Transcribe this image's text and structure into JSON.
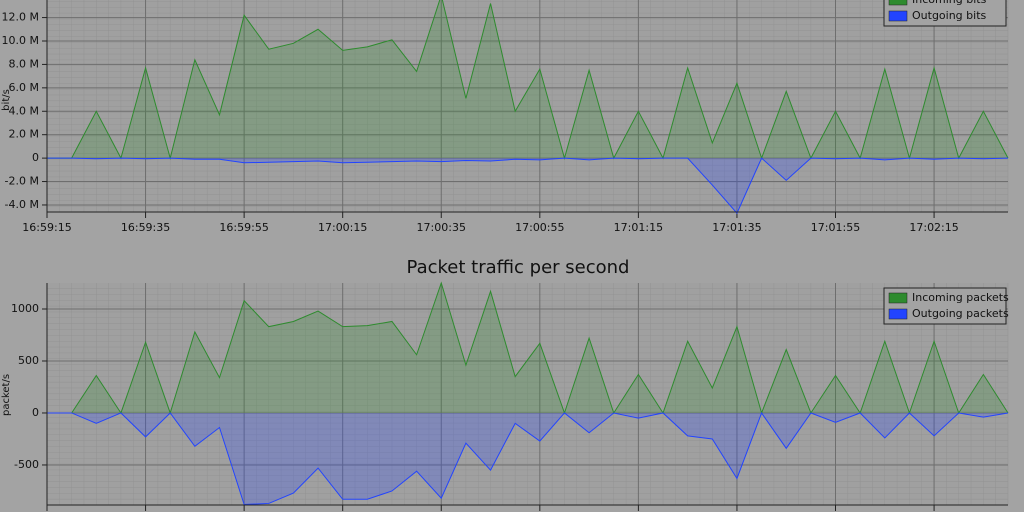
{
  "chart_data": [
    {
      "type": "area",
      "ylabel": "bit/s",
      "x": [
        "16:59:15",
        "16:59:20",
        "16:59:25",
        "16:59:30",
        "16:59:35",
        "16:59:40",
        "16:59:45",
        "16:59:50",
        "16:59:55",
        "17:00:00",
        "17:00:05",
        "17:00:10",
        "17:00:15",
        "17:00:20",
        "17:00:25",
        "17:00:30",
        "17:00:35",
        "17:00:40",
        "17:00:45",
        "17:00:50",
        "17:00:55",
        "17:01:00",
        "17:01:05",
        "17:01:10",
        "17:01:15",
        "17:01:20",
        "17:01:25",
        "17:01:30",
        "17:01:35",
        "17:01:40",
        "17:01:45",
        "17:01:50",
        "17:01:55",
        "17:02:00",
        "17:02:05",
        "17:02:10",
        "17:02:15",
        "17:02:20",
        "17:02:25",
        "17:02:30"
      ],
      "xlim": [
        "16:59:15",
        "17:02:30"
      ],
      "xticks": [
        "16:59:15",
        "16:59:35",
        "16:59:55",
        "17:00:15",
        "17:00:35",
        "17:00:55",
        "17:01:15",
        "17:01:35",
        "17:01:55",
        "17:02:15"
      ],
      "ylim": [
        -4600000,
        13500000
      ],
      "yticks": [
        {
          "value": -4000000,
          "label": "-4.0 M"
        },
        {
          "value": -2000000,
          "label": "-2.0 M"
        },
        0,
        {
          "value": 2000000,
          "label": "2.0 M"
        },
        {
          "value": 4000000,
          "label": "4.0 M"
        },
        {
          "value": 6000000,
          "label": "6.0 M"
        },
        {
          "value": 8000000,
          "label": "8.0 M"
        },
        {
          "value": 10000000,
          "label": "10.0 M"
        },
        {
          "value": 12000000,
          "label": "12.0 M"
        }
      ],
      "grid": true,
      "legend": "upper right",
      "series": [
        {
          "name": "Incoming bits",
          "color": "#2e8b2e",
          "values": [
            0,
            0,
            4000000,
            0,
            7700000,
            0,
            8400000,
            3700000,
            12200000,
            9300000,
            9800000,
            11000000,
            9200000,
            9500000,
            10100000,
            7400000,
            13900000,
            5100000,
            13200000,
            4000000,
            7600000,
            0,
            7500000,
            0,
            4000000,
            0,
            7700000,
            1300000,
            6400000,
            0,
            5700000,
            0,
            4000000,
            0,
            7600000,
            0,
            7700000,
            0,
            4000000,
            0
          ]
        },
        {
          "name": "Outgoing bits",
          "color": "#2244ff",
          "values": [
            0,
            0,
            -50000,
            0,
            -50000,
            0,
            -100000,
            -100000,
            -400000,
            -350000,
            -300000,
            -250000,
            -400000,
            -350000,
            -300000,
            -250000,
            -300000,
            -200000,
            -250000,
            -100000,
            -150000,
            0,
            -150000,
            0,
            -50000,
            0,
            0,
            -2300000,
            -4700000,
            0,
            -1900000,
            0,
            -50000,
            0,
            -150000,
            0,
            -100000,
            0,
            -50000,
            0
          ]
        }
      ]
    },
    {
      "type": "area",
      "title": "Packet traffic per second",
      "ylabel": "packet/s",
      "x": [
        "16:59:15",
        "16:59:20",
        "16:59:25",
        "16:59:30",
        "16:59:35",
        "16:59:40",
        "16:59:45",
        "16:59:50",
        "16:59:55",
        "17:00:00",
        "17:00:05",
        "17:00:10",
        "17:00:15",
        "17:00:20",
        "17:00:25",
        "17:00:30",
        "17:00:35",
        "17:00:40",
        "17:00:45",
        "17:00:50",
        "17:00:55",
        "17:01:00",
        "17:01:05",
        "17:01:10",
        "17:01:15",
        "17:01:20",
        "17:01:25",
        "17:01:30",
        "17:01:35",
        "17:01:40",
        "17:01:45",
        "17:01:50",
        "17:01:55",
        "17:02:00",
        "17:02:05",
        "17:02:10",
        "17:02:15",
        "17:02:20",
        "17:02:25",
        "17:02:30"
      ],
      "xlim": [
        "16:59:15",
        "17:02:30"
      ],
      "ylim": [
        -885,
        1250
      ],
      "yticks": [
        -500,
        0,
        500,
        1000
      ],
      "grid": true,
      "legend": "upper right",
      "series": [
        {
          "name": "Incoming packets",
          "color": "#2e8b2e",
          "values": [
            0,
            0,
            360,
            0,
            680,
            0,
            780,
            340,
            1080,
            830,
            880,
            980,
            830,
            840,
            880,
            560,
            1250,
            460,
            1170,
            350,
            670,
            0,
            720,
            0,
            370,
            0,
            690,
            240,
            830,
            0,
            610,
            0,
            360,
            0,
            690,
            0,
            690,
            0,
            370,
            0
          ]
        },
        {
          "name": "Outgoing packets",
          "color": "#2244ff",
          "values": [
            0,
            0,
            -100,
            0,
            -230,
            0,
            -320,
            -140,
            -880,
            -870,
            -770,
            -530,
            -830,
            -830,
            -750,
            -560,
            -820,
            -290,
            -550,
            -100,
            -270,
            0,
            -190,
            0,
            -50,
            0,
            -220,
            -250,
            -630,
            0,
            -340,
            0,
            -90,
            0,
            -240,
            0,
            -220,
            0,
            -40,
            0
          ]
        }
      ]
    }
  ]
}
